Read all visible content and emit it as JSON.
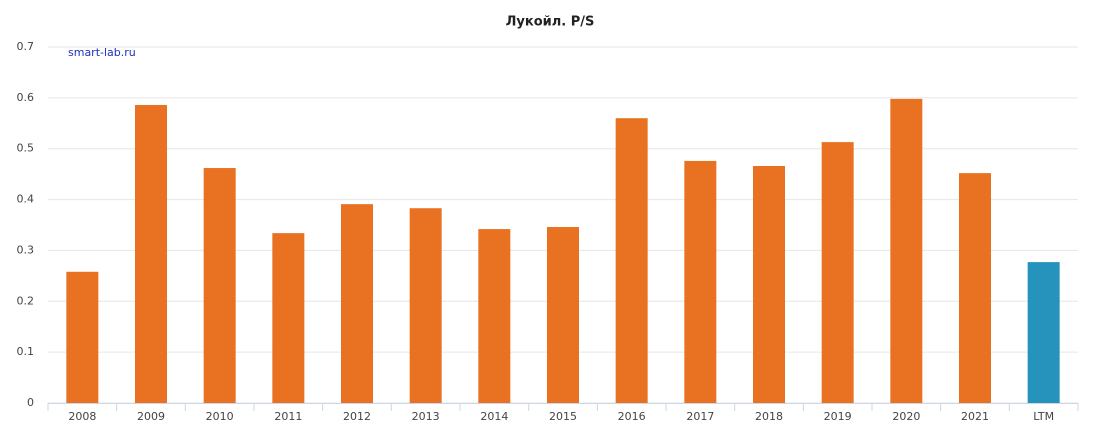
{
  "chart_data": {
    "type": "bar",
    "title": "Лукойл. P/S",
    "annotation": "smart-lab.ru",
    "categories": [
      "2008",
      "2009",
      "2010",
      "2011",
      "2012",
      "2013",
      "2014",
      "2015",
      "2016",
      "2017",
      "2018",
      "2019",
      "2020",
      "2021",
      "LTM"
    ],
    "values": [
      0.258,
      0.586,
      0.462,
      0.334,
      0.391,
      0.383,
      0.342,
      0.346,
      0.56,
      0.476,
      0.466,
      0.513,
      0.598,
      0.452,
      0.277
    ],
    "colors": [
      "#e87221",
      "#e87221",
      "#e87221",
      "#e87221",
      "#e87221",
      "#e87221",
      "#e87221",
      "#e87221",
      "#e87221",
      "#e87221",
      "#e87221",
      "#e87221",
      "#e87221",
      "#e87221",
      "#2693bd"
    ],
    "ylim": [
      0,
      0.7
    ],
    "yticks": [
      0,
      0.1,
      0.2,
      0.3,
      0.4,
      0.5,
      0.6,
      0.7
    ],
    "grid": true
  }
}
